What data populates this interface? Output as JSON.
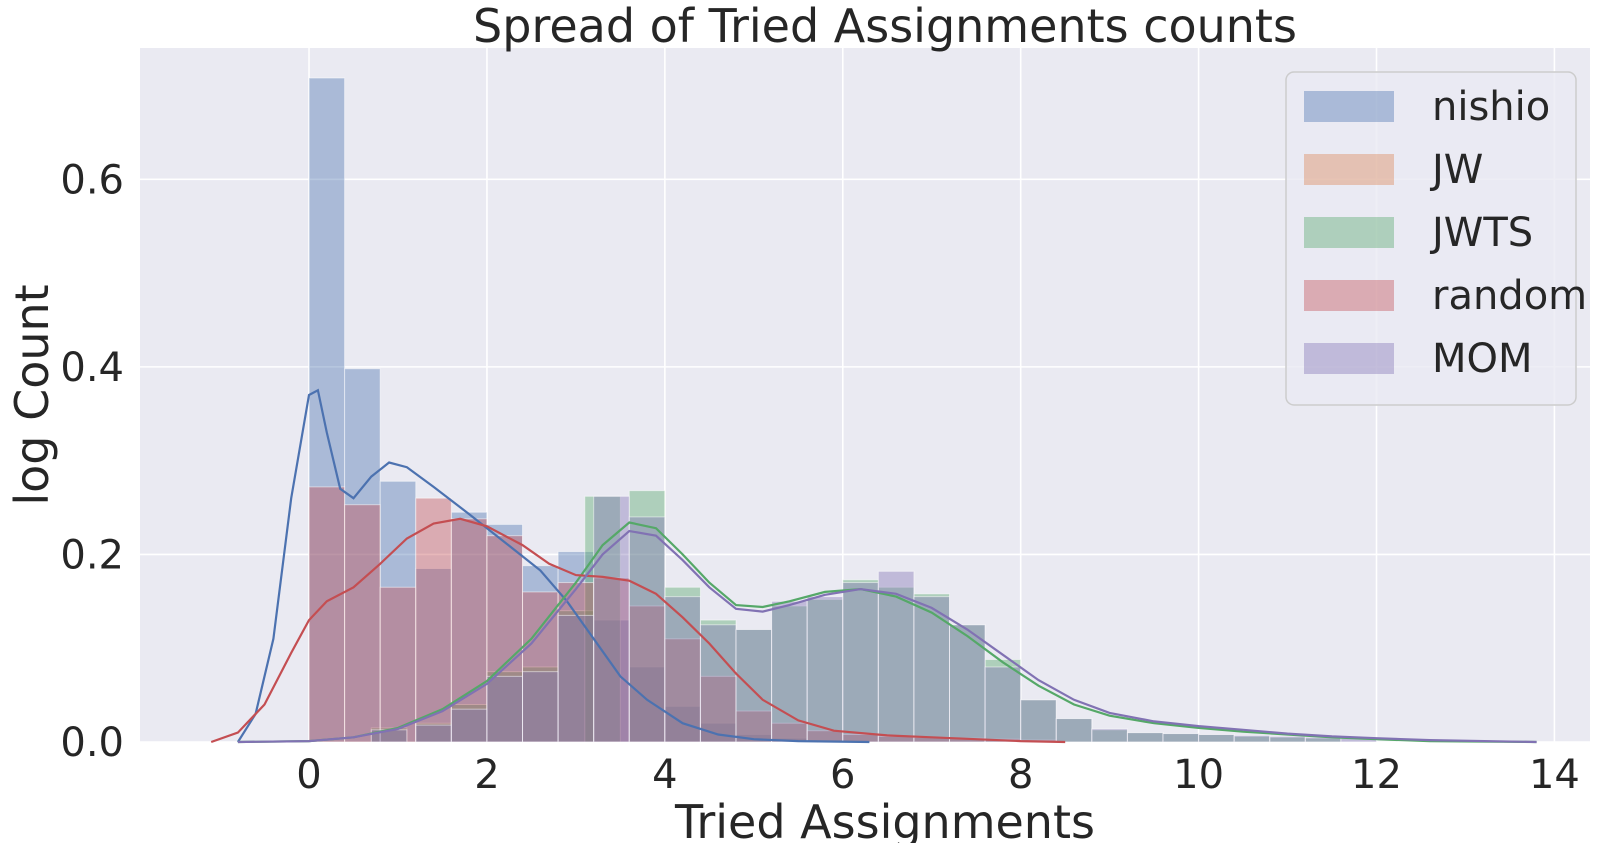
{
  "chart_data": {
    "type": "histogram",
    "title": "Spread of Tried Assignments counts",
    "xlabel": "Tried Assignments",
    "ylabel": "log Count",
    "xlim": [
      -1.9,
      14.4
    ],
    "ylim": [
      0,
      0.74
    ],
    "xticks": [
      "0",
      "2",
      "4",
      "6",
      "8",
      "10",
      "12",
      "14"
    ],
    "xtick_values": [
      0,
      2,
      4,
      6,
      8,
      10,
      12,
      14
    ],
    "yticks": [
      "0.0",
      "0.2",
      "0.4",
      "0.6"
    ],
    "ytick_values": [
      0,
      0.2,
      0.4,
      0.6
    ],
    "grid": true,
    "legend_position": "top-right",
    "bin_width": 0.4,
    "series": [
      {
        "name": "nishio",
        "color": "#4c72b0",
        "bars": [
          {
            "x": 0.0,
            "h": 0.708
          },
          {
            "x": 0.4,
            "h": 0.398
          },
          {
            "x": 0.8,
            "h": 0.278
          },
          {
            "x": 1.2,
            "h": 0.185
          },
          {
            "x": 1.6,
            "h": 0.245
          },
          {
            "x": 2.0,
            "h": 0.232
          },
          {
            "x": 2.4,
            "h": 0.188
          },
          {
            "x": 2.8,
            "h": 0.203
          },
          {
            "x": 3.2,
            "h": 0.13
          },
          {
            "x": 3.6,
            "h": 0.08
          },
          {
            "x": 4.0,
            "h": 0.038
          },
          {
            "x": 4.4,
            "h": 0.02
          },
          {
            "x": 4.8,
            "h": 0.008
          },
          {
            "x": 5.2,
            "h": 0.004
          }
        ],
        "kde": [
          [
            -0.8,
            0.0
          ],
          [
            -0.6,
            0.03
          ],
          [
            -0.4,
            0.11
          ],
          [
            -0.2,
            0.26
          ],
          [
            0.0,
            0.37
          ],
          [
            0.1,
            0.375
          ],
          [
            0.2,
            0.33
          ],
          [
            0.35,
            0.27
          ],
          [
            0.5,
            0.26
          ],
          [
            0.7,
            0.283
          ],
          [
            0.9,
            0.298
          ],
          [
            1.1,
            0.293
          ],
          [
            1.4,
            0.272
          ],
          [
            1.8,
            0.243
          ],
          [
            2.2,
            0.213
          ],
          [
            2.6,
            0.183
          ],
          [
            2.9,
            0.15
          ],
          [
            3.2,
            0.11
          ],
          [
            3.5,
            0.07
          ],
          [
            3.8,
            0.045
          ],
          [
            4.2,
            0.02
          ],
          [
            4.6,
            0.008
          ],
          [
            5.0,
            0.003
          ],
          [
            5.5,
            0.001
          ],
          [
            6.3,
            0.0
          ]
        ]
      },
      {
        "name": "JW",
        "color": "#dd8452",
        "bars": [],
        "kde": []
      },
      {
        "name": "JWTS",
        "color": "#55a868",
        "bars": [
          {
            "x": 0.7,
            "h": 0.015
          },
          {
            "x": 1.2,
            "h": 0.02
          },
          {
            "x": 1.6,
            "h": 0.04
          },
          {
            "x": 2.0,
            "h": 0.075
          },
          {
            "x": 2.4,
            "h": 0.08
          },
          {
            "x": 2.8,
            "h": 0.14
          },
          {
            "x": 3.1,
            "h": 0.262
          },
          {
            "x": 3.6,
            "h": 0.268
          },
          {
            "x": 4.0,
            "h": 0.165
          },
          {
            "x": 4.4,
            "h": 0.13
          },
          {
            "x": 4.8,
            "h": 0.12
          },
          {
            "x": 5.2,
            "h": 0.145
          },
          {
            "x": 5.6,
            "h": 0.152
          },
          {
            "x": 6.0,
            "h": 0.173
          },
          {
            "x": 6.4,
            "h": 0.165
          },
          {
            "x": 6.8,
            "h": 0.158
          },
          {
            "x": 7.2,
            "h": 0.125
          },
          {
            "x": 7.6,
            "h": 0.088
          },
          {
            "x": 8.0,
            "h": 0.045
          },
          {
            "x": 8.4,
            "h": 0.025
          },
          {
            "x": 8.8,
            "h": 0.013
          },
          {
            "x": 9.2,
            "h": 0.01
          },
          {
            "x": 9.6,
            "h": 0.009
          },
          {
            "x": 10.0,
            "h": 0.008
          },
          {
            "x": 10.4,
            "h": 0.006
          },
          {
            "x": 10.8,
            "h": 0.005
          },
          {
            "x": 11.2,
            "h": 0.004
          }
        ],
        "kde": [
          [
            -0.8,
            0.0
          ],
          [
            0.0,
            0.001
          ],
          [
            0.5,
            0.005
          ],
          [
            1.0,
            0.015
          ],
          [
            1.5,
            0.035
          ],
          [
            2.0,
            0.065
          ],
          [
            2.5,
            0.11
          ],
          [
            3.0,
            0.17
          ],
          [
            3.3,
            0.21
          ],
          [
            3.6,
            0.234
          ],
          [
            3.9,
            0.228
          ],
          [
            4.2,
            0.2
          ],
          [
            4.5,
            0.17
          ],
          [
            4.8,
            0.146
          ],
          [
            5.1,
            0.144
          ],
          [
            5.4,
            0.15
          ],
          [
            5.8,
            0.16
          ],
          [
            6.2,
            0.163
          ],
          [
            6.6,
            0.155
          ],
          [
            7.0,
            0.138
          ],
          [
            7.4,
            0.113
          ],
          [
            7.8,
            0.085
          ],
          [
            8.2,
            0.06
          ],
          [
            8.6,
            0.04
          ],
          [
            9.0,
            0.028
          ],
          [
            9.5,
            0.02
          ],
          [
            10.0,
            0.015
          ],
          [
            10.5,
            0.011
          ],
          [
            11.0,
            0.008
          ],
          [
            11.5,
            0.005
          ],
          [
            12.0,
            0.003
          ],
          [
            12.6,
            0.001
          ],
          [
            13.8,
            0.0
          ]
        ]
      },
      {
        "name": "random",
        "color": "#c44e52",
        "bars": [
          {
            "x": 0.0,
            "h": 0.272
          },
          {
            "x": 0.4,
            "h": 0.253
          },
          {
            "x": 0.8,
            "h": 0.165
          },
          {
            "x": 1.2,
            "h": 0.26
          },
          {
            "x": 1.6,
            "h": 0.238
          },
          {
            "x": 2.0,
            "h": 0.22
          },
          {
            "x": 2.4,
            "h": 0.16
          },
          {
            "x": 2.8,
            "h": 0.17
          },
          {
            "x": 3.2,
            "h": 0.175
          },
          {
            "x": 3.6,
            "h": 0.145
          },
          {
            "x": 4.0,
            "h": 0.11
          },
          {
            "x": 4.4,
            "h": 0.07
          },
          {
            "x": 4.8,
            "h": 0.033
          },
          {
            "x": 5.2,
            "h": 0.02
          },
          {
            "x": 5.6,
            "h": 0.012
          },
          {
            "x": 6.0,
            "h": 0.008
          },
          {
            "x": 6.4,
            "h": 0.006
          },
          {
            "x": 6.8,
            "h": 0.005
          },
          {
            "x": 7.2,
            "h": 0.004
          },
          {
            "x": 7.6,
            "h": 0.003
          },
          {
            "x": 8.0,
            "h": 0.002
          }
        ],
        "kde": [
          [
            -1.1,
            0.0
          ],
          [
            -0.8,
            0.01
          ],
          [
            -0.5,
            0.04
          ],
          [
            -0.2,
            0.095
          ],
          [
            0.0,
            0.13
          ],
          [
            0.2,
            0.15
          ],
          [
            0.5,
            0.165
          ],
          [
            0.8,
            0.19
          ],
          [
            1.1,
            0.217
          ],
          [
            1.4,
            0.233
          ],
          [
            1.7,
            0.238
          ],
          [
            2.0,
            0.23
          ],
          [
            2.4,
            0.21
          ],
          [
            2.7,
            0.19
          ],
          [
            3.0,
            0.178
          ],
          [
            3.3,
            0.176
          ],
          [
            3.6,
            0.172
          ],
          [
            3.9,
            0.158
          ],
          [
            4.2,
            0.133
          ],
          [
            4.5,
            0.105
          ],
          [
            4.8,
            0.073
          ],
          [
            5.1,
            0.045
          ],
          [
            5.5,
            0.023
          ],
          [
            5.9,
            0.012
          ],
          [
            6.5,
            0.007
          ],
          [
            7.0,
            0.005
          ],
          [
            7.5,
            0.003
          ],
          [
            8.0,
            0.001
          ],
          [
            8.5,
            0.0
          ]
        ]
      },
      {
        "name": "MOM",
        "color": "#8172b3",
        "bars": [
          {
            "x": 0.7,
            "h": 0.013
          },
          {
            "x": 1.2,
            "h": 0.018
          },
          {
            "x": 1.6,
            "h": 0.035
          },
          {
            "x": 2.0,
            "h": 0.07
          },
          {
            "x": 2.4,
            "h": 0.075
          },
          {
            "x": 2.8,
            "h": 0.135
          },
          {
            "x": 3.2,
            "h": 0.262
          },
          {
            "x": 3.6,
            "h": 0.24
          },
          {
            "x": 4.0,
            "h": 0.155
          },
          {
            "x": 4.4,
            "h": 0.125
          },
          {
            "x": 4.8,
            "h": 0.12
          },
          {
            "x": 5.2,
            "h": 0.15
          },
          {
            "x": 5.6,
            "h": 0.155
          },
          {
            "x": 6.0,
            "h": 0.17
          },
          {
            "x": 6.4,
            "h": 0.182
          },
          {
            "x": 6.8,
            "h": 0.155
          },
          {
            "x": 7.2,
            "h": 0.125
          },
          {
            "x": 7.6,
            "h": 0.08
          },
          {
            "x": 8.0,
            "h": 0.045
          },
          {
            "x": 8.4,
            "h": 0.025
          },
          {
            "x": 8.8,
            "h": 0.014
          },
          {
            "x": 9.2,
            "h": 0.01
          },
          {
            "x": 9.6,
            "h": 0.009
          },
          {
            "x": 10.0,
            "h": 0.008
          },
          {
            "x": 10.4,
            "h": 0.007
          },
          {
            "x": 10.8,
            "h": 0.006
          },
          {
            "x": 11.2,
            "h": 0.005
          },
          {
            "x": 11.6,
            "h": 0.004
          }
        ],
        "kde": [
          [
            -0.8,
            0.0
          ],
          [
            0.0,
            0.001
          ],
          [
            0.5,
            0.005
          ],
          [
            1.0,
            0.014
          ],
          [
            1.5,
            0.033
          ],
          [
            2.0,
            0.062
          ],
          [
            2.5,
            0.105
          ],
          [
            3.0,
            0.163
          ],
          [
            3.3,
            0.2
          ],
          [
            3.6,
            0.225
          ],
          [
            3.9,
            0.22
          ],
          [
            4.2,
            0.194
          ],
          [
            4.5,
            0.165
          ],
          [
            4.8,
            0.142
          ],
          [
            5.1,
            0.139
          ],
          [
            5.4,
            0.146
          ],
          [
            5.8,
            0.157
          ],
          [
            6.2,
            0.163
          ],
          [
            6.6,
            0.158
          ],
          [
            7.0,
            0.143
          ],
          [
            7.4,
            0.12
          ],
          [
            7.8,
            0.093
          ],
          [
            8.2,
            0.066
          ],
          [
            8.6,
            0.045
          ],
          [
            9.0,
            0.031
          ],
          [
            9.5,
            0.022
          ],
          [
            10.0,
            0.017
          ],
          [
            10.5,
            0.013
          ],
          [
            11.0,
            0.009
          ],
          [
            11.5,
            0.006
          ],
          [
            12.0,
            0.004
          ],
          [
            12.6,
            0.002
          ],
          [
            13.8,
            0.0
          ]
        ]
      }
    ]
  }
}
